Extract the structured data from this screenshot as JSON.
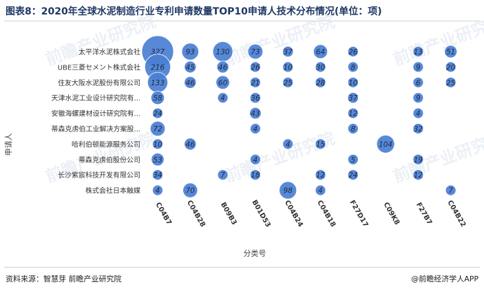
{
  "title": "图表8：2020年全球水泥制造行业专利申请数量TOP10申请人技术分布情况(单位：项)",
  "source": "资料来源：智慧芽 前瞻产业研究院",
  "brand": "@前瞻经济学人APP",
  "watermark": "前瞻产业研究院",
  "colors": {
    "bubble": "#4a7fd4",
    "bubble_dark": "#2f63b8",
    "text": "#333333",
    "title": "#1f3864"
  },
  "chart_data": {
    "type": "scatter",
    "title": "图表8：2020年全球水泥制造行业专利申请数量TOP10申请人技术分布情况(单位：项)",
    "xlabel": "分类号",
    "ylabel": "申请人",
    "x_categories": [
      "C04B7",
      "C04B28",
      "B09B3",
      "B01D53",
      "C04B24",
      "C04B18",
      "F27D17",
      "C09K8",
      "F27B7",
      "C04B22"
    ],
    "y_categories": [
      "太平洋水泥株式会社",
      "UBE三菱セメント株式会社",
      "住友大阪水泥股份有限公司",
      "天津水泥工业设计研究院有...",
      "安徽海螺建材设计研究院有...",
      "蒂森克虏伯工业解决方案股...",
      "哈利伯顿能源服务公司",
      "蒂森克虏伯股份公司",
      "长沙紫宸科技开发有限公司",
      "株式会社日本触媒"
    ],
    "points": [
      {
        "x": "C04B7",
        "y": "太平洋水泥株式会社",
        "value": 327
      },
      {
        "x": "C04B28",
        "y": "太平洋水泥株式会社",
        "value": 93
      },
      {
        "x": "B09B3",
        "y": "太平洋水泥株式会社",
        "value": 130
      },
      {
        "x": "B01D53",
        "y": "太平洋水泥株式会社",
        "value": 73
      },
      {
        "x": "C04B24",
        "y": "太平洋水泥株式会社",
        "value": 37
      },
      {
        "x": "C04B18",
        "y": "太平洋水泥株式会社",
        "value": 64
      },
      {
        "x": "F27D17",
        "y": "太平洋水泥株式会社",
        "value": 26
      },
      {
        "x": "F27B7",
        "y": "太平洋水泥株式会社",
        "value": 13
      },
      {
        "x": "C04B22",
        "y": "太平洋水泥株式会社",
        "value": 51
      },
      {
        "x": "C04B7",
        "y": "UBE三菱セメント株式会社",
        "value": 216
      },
      {
        "x": "C04B28",
        "y": "UBE三菱セメント株式会社",
        "value": 45
      },
      {
        "x": "B09B3",
        "y": "UBE三菱セメント株式会社",
        "value": 46
      },
      {
        "x": "B01D53",
        "y": "UBE三菱セメント株式会社",
        "value": 26
      },
      {
        "x": "C04B24",
        "y": "UBE三菱セメント株式会社",
        "value": 10
      },
      {
        "x": "C04B18",
        "y": "UBE三菱セメント株式会社",
        "value": 30
      },
      {
        "x": "F27D17",
        "y": "UBE三菱セメント株式会社",
        "value": 8
      },
      {
        "x": "F27B7",
        "y": "UBE三菱セメント株式会社",
        "value": 9
      },
      {
        "x": "C04B22",
        "y": "UBE三菱セメント株式会社",
        "value": 20
      },
      {
        "x": "C04B7",
        "y": "住友大阪水泥股份有限公司",
        "value": 133
      },
      {
        "x": "C04B28",
        "y": "住友大阪水泥股份有限公司",
        "value": 46
      },
      {
        "x": "B09B3",
        "y": "住友大阪水泥股份有限公司",
        "value": 60
      },
      {
        "x": "B01D53",
        "y": "住友大阪水泥股份有限公司",
        "value": 21
      },
      {
        "x": "C04B24",
        "y": "住友大阪水泥股份有限公司",
        "value": 25
      },
      {
        "x": "C04B18",
        "y": "住友大阪水泥股份有限公司",
        "value": 28
      },
      {
        "x": "F27D17",
        "y": "住友大阪水泥股份有限公司",
        "value": 10
      },
      {
        "x": "F27B7",
        "y": "住友大阪水泥股份有限公司",
        "value": 6
      },
      {
        "x": "C04B22",
        "y": "住友大阪水泥股份有限公司",
        "value": 25
      },
      {
        "x": "C04B7",
        "y": "天津水泥工业设计研究院有...",
        "value": 58
      },
      {
        "x": "B09B3",
        "y": "天津水泥工业设计研究院有...",
        "value": 4
      },
      {
        "x": "B01D53",
        "y": "天津水泥工业设计研究院有...",
        "value": 36
      },
      {
        "x": "F27D17",
        "y": "天津水泥工业设计研究院有...",
        "value": 37
      },
      {
        "x": "F27B7",
        "y": "天津水泥工业设计研究院有...",
        "value": 9
      },
      {
        "x": "C04B7",
        "y": "安徽海螺建材设计研究院有...",
        "value": 24
      },
      {
        "x": "B01D53",
        "y": "安徽海螺建材设计研究院有...",
        "value": 43
      },
      {
        "x": "F27D17",
        "y": "安徽海螺建材设计研究院有...",
        "value": 12
      },
      {
        "x": "F27B7",
        "y": "安徽海螺建材设计研究院有...",
        "value": 4
      },
      {
        "x": "C04B7",
        "y": "蒂森克虏伯工业解决方案股...",
        "value": 72
      },
      {
        "x": "B01D53",
        "y": "蒂森克虏伯工业解决方案股...",
        "value": 4
      },
      {
        "x": "F27D17",
        "y": "蒂森克虏伯工业解决方案股...",
        "value": 8
      },
      {
        "x": "F27B7",
        "y": "蒂森克虏伯工业解决方案股...",
        "value": 32
      },
      {
        "x": "C04B7",
        "y": "哈利伯顿能源服务公司",
        "value": 10
      },
      {
        "x": "C04B28",
        "y": "哈利伯顿能源服务公司",
        "value": 46
      },
      {
        "x": "C04B24",
        "y": "哈利伯顿能源服务公司",
        "value": 4
      },
      {
        "x": "C04B18",
        "y": "哈利伯顿能源服务公司",
        "value": 15
      },
      {
        "x": "C09K8",
        "y": "哈利伯顿能源服务公司",
        "value": 104
      },
      {
        "x": "C04B7",
        "y": "蒂森克虏伯股份公司",
        "value": 53
      },
      {
        "x": "B01D53",
        "y": "蒂森克虏伯股份公司",
        "value": 4
      },
      {
        "x": "F27D17",
        "y": "蒂森克虏伯股份公司",
        "value": 5
      },
      {
        "x": "F27B7",
        "y": "蒂森克虏伯股份公司",
        "value": 19
      },
      {
        "x": "C04B7",
        "y": "长沙紫宸科技开发有限公司",
        "value": 34
      },
      {
        "x": "B09B3",
        "y": "长沙紫宸科技开发有限公司",
        "value": 7
      },
      {
        "x": "B01D53",
        "y": "长沙紫宸科技开发有限公司",
        "value": 18
      },
      {
        "x": "C04B18",
        "y": "长沙紫宸科技开发有限公司",
        "value": 12
      },
      {
        "x": "F27D17",
        "y": "长沙紫宸科技开发有限公司",
        "value": 24
      },
      {
        "x": "F27B7",
        "y": "长沙紫宸科技开发有限公司",
        "value": 12
      },
      {
        "x": "C04B7",
        "y": "株式会社日本触媒",
        "value": 4
      },
      {
        "x": "C04B28",
        "y": "株式会社日本触媒",
        "value": 70
      },
      {
        "x": "C04B24",
        "y": "株式会社日本触媒",
        "value": 98
      },
      {
        "x": "C04B18",
        "y": "株式会社日本触媒",
        "value": 4
      },
      {
        "x": "C04B22",
        "y": "株式会社日本触媒",
        "value": 7
      }
    ],
    "legend": "none",
    "grid": false
  }
}
